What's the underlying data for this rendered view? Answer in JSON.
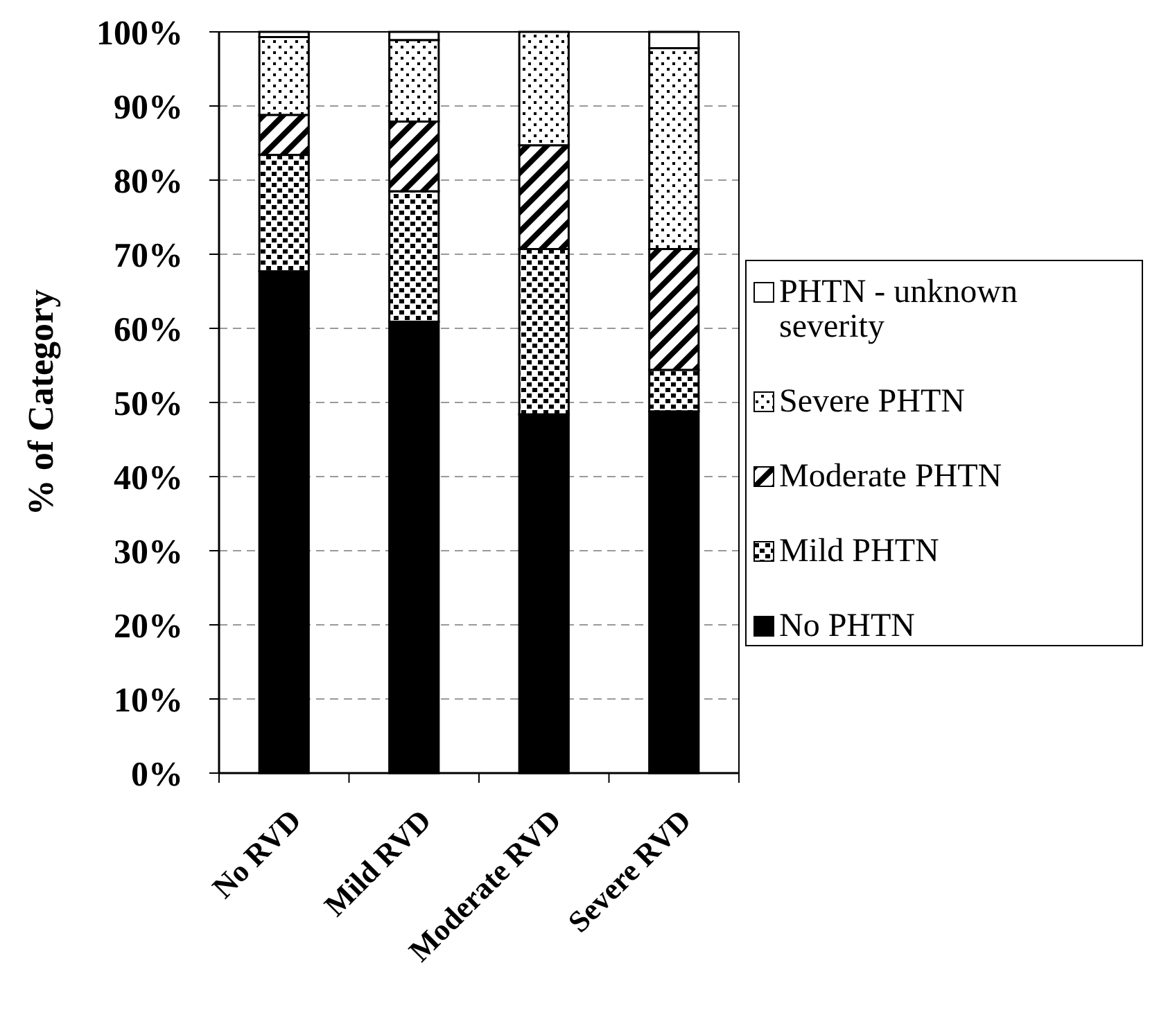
{
  "chart_data": {
    "type": "bar",
    "stacked": true,
    "ylabel": "% of Category",
    "categories": [
      "No RVD",
      "Mild RVD",
      "Moderate RVD",
      "Severe RVD"
    ],
    "series": [
      {
        "name": "No PHTN",
        "color": "#000000",
        "values": [
          67.7,
          60.9,
          48.4,
          48.8
        ]
      },
      {
        "name": "Mild PHTN",
        "color": "#000000",
        "values": [
          15.7,
          17.6,
          22.3,
          5.6
        ]
      },
      {
        "name": "Moderate PHTN",
        "color": "#000000",
        "values": [
          5.4,
          9.4,
          14,
          16.3
        ]
      },
      {
        "name": "Severe PHTN",
        "color": "#000000",
        "values": [
          10.5,
          11,
          15.3,
          27.1
        ]
      },
      {
        "name": "PHTN - unknown severity",
        "color": "#ffffff",
        "values": [
          0.7,
          1.1,
          0,
          2.2
        ]
      }
    ],
    "ylim": [
      0,
      100
    ],
    "yticks": [
      {
        "value": 0,
        "label": "0%"
      },
      {
        "value": 10,
        "label": "10%"
      },
      {
        "value": 20,
        "label": "20%"
      },
      {
        "value": 30,
        "label": "30%"
      },
      {
        "value": 40,
        "label": "40%"
      },
      {
        "value": 50,
        "label": "50%"
      },
      {
        "value": 60,
        "label": "60%"
      },
      {
        "value": 70,
        "label": "70%"
      },
      {
        "value": 80,
        "label": "80%"
      },
      {
        "value": 90,
        "label": "90%"
      },
      {
        "value": 100,
        "label": "100%"
      }
    ],
    "grid": "y",
    "legend": "right"
  }
}
